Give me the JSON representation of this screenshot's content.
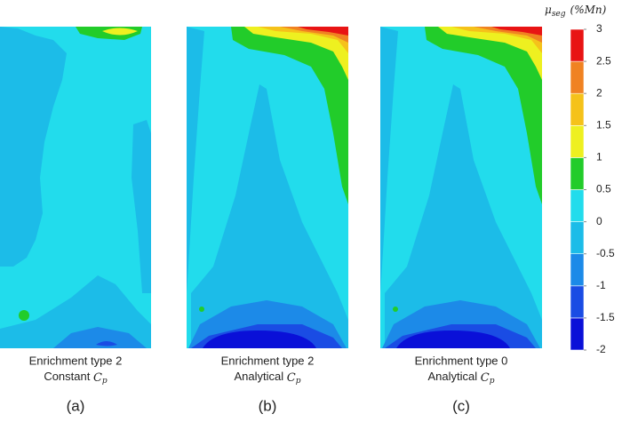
{
  "chart_data": {
    "type": "contour",
    "colorbar": {
      "symbol": "μ",
      "sub": "seg",
      "unit": "(%Mn)",
      "ylim": [
        -2,
        3
      ],
      "yticks": [
        -2,
        -1.5,
        -1,
        -0.5,
        0,
        0.5,
        1,
        1.5,
        2,
        2.5,
        3
      ],
      "colors": [
        "#0a10d8",
        "#1a4ce4",
        "#1c8ae8",
        "#1cbce8",
        "#22dcec",
        "#22cc2a",
        "#eef020",
        "#f5c21a",
        "#f08222",
        "#e81414"
      ]
    },
    "panels": [
      {
        "line1": "Enrichment type 2",
        "line2": "Constant ",
        "symbol": "C",
        "sub": "p",
        "label": "(a)"
      },
      {
        "line1": "Enrichment type 2",
        "line2": "Analytical ",
        "symbol": "C",
        "sub": "p",
        "label": "(b)"
      },
      {
        "line1": "Enrichment type 0",
        "line2": "Analytical ",
        "symbol": "C",
        "sub": "p",
        "label": "(c)"
      }
    ]
  }
}
